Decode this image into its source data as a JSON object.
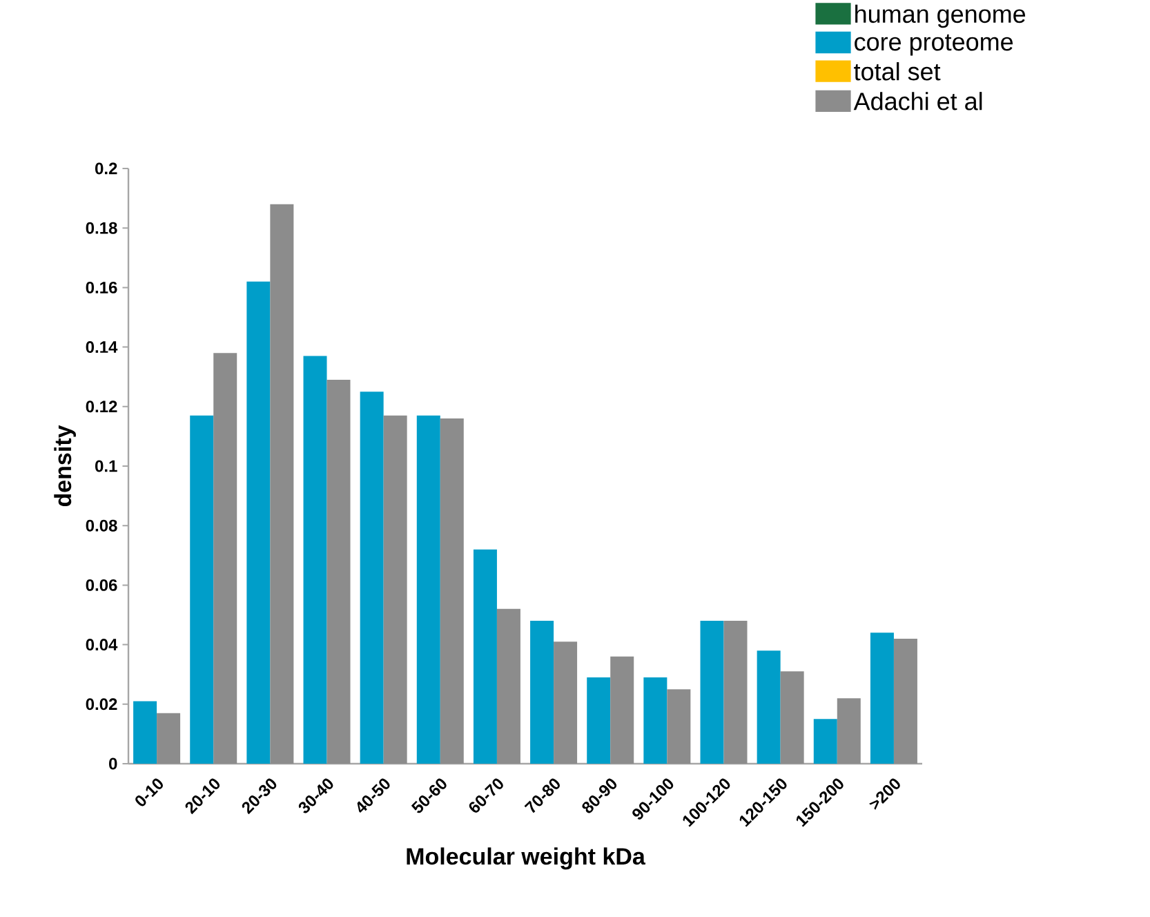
{
  "chart_data": {
    "type": "bar",
    "xlabel": "Molecular weight kDa",
    "ylabel": "density",
    "categories": [
      "0-10",
      "20-10",
      "20-30",
      "30-40",
      "40-50",
      "50-60",
      "60-70",
      "70-80",
      "80-90",
      "90-100",
      "100-120",
      "120-150",
      "150-200",
      ">200"
    ],
    "series": [
      {
        "name": "human genome",
        "color": "#1a7040",
        "values": [
          null,
          null,
          null,
          null,
          null,
          null,
          null,
          null,
          null,
          null,
          null,
          null,
          null,
          null
        ]
      },
      {
        "name": "core proteome",
        "color": "#009ec9",
        "values": [
          0.021,
          0.117,
          0.162,
          0.137,
          0.125,
          0.117,
          0.072,
          0.048,
          0.029,
          0.029,
          0.048,
          0.038,
          0.015,
          0.044
        ]
      },
      {
        "name": "total set",
        "color": "#ffc000",
        "values": [
          null,
          null,
          null,
          null,
          null,
          null,
          null,
          null,
          null,
          null,
          null,
          null,
          null,
          null
        ]
      },
      {
        "name": "Adachi et al",
        "color": "#8c8c8c",
        "values": [
          0.017,
          0.138,
          0.188,
          0.129,
          0.117,
          0.116,
          0.052,
          0.041,
          0.036,
          0.025,
          0.048,
          0.031,
          0.022,
          0.042
        ]
      }
    ],
    "ylim": [
      0,
      0.2
    ],
    "yticks": [
      0,
      0.02,
      0.04,
      0.06,
      0.08,
      0.1,
      0.12,
      0.14,
      0.16,
      0.18,
      0.2
    ],
    "legend": "top right",
    "grid": false
  }
}
